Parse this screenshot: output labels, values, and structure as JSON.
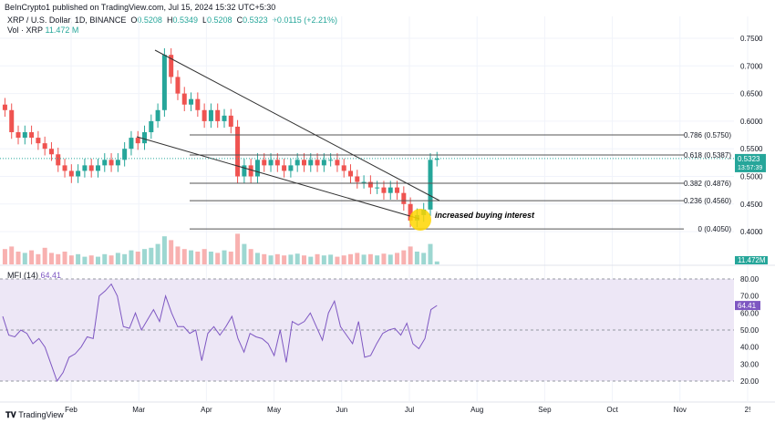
{
  "header": {
    "published": "BeInCrypto1 published on TradingView.com, Jul 15, 2024 15:32 UTC+5:30",
    "symbol": "XRP / U.S. Dollar, 1D, BINANCE",
    "o_label": "O",
    "o": "0.5208",
    "h_label": "H",
    "h": "0.5349",
    "l_label": "L",
    "l": "0.5208",
    "c_label": "C",
    "c": "0.5323",
    "change": "+0.0115 (+2.21%)",
    "vol_label": "Vol · XRP",
    "vol": "11.472 M"
  },
  "mfi": {
    "label": "MFI (14)",
    "value": "64.41"
  },
  "brand": "TradingView",
  "colors": {
    "up": "#26a69a",
    "down": "#ef5350",
    "mfi": "#7e57c2",
    "mfi_band": "#ede7f6",
    "highlight": "#ffd600"
  },
  "chart_data": [
    {
      "type": "candlestick",
      "title": "XRP / U.S. Dollar, 1D, BINANCE",
      "sampling_days": 3,
      "start": "2024-01-01",
      "close": [
        0.62,
        0.58,
        0.57,
        0.58,
        0.57,
        0.56,
        0.55,
        0.54,
        0.52,
        0.51,
        0.5,
        0.51,
        0.52,
        0.51,
        0.52,
        0.53,
        0.52,
        0.53,
        0.55,
        0.57,
        0.56,
        0.58,
        0.6,
        0.62,
        0.72,
        0.68,
        0.65,
        0.63,
        0.64,
        0.62,
        0.6,
        0.62,
        0.6,
        0.61,
        0.59,
        0.5,
        0.52,
        0.5,
        0.53,
        0.52,
        0.53,
        0.52,
        0.51,
        0.52,
        0.53,
        0.52,
        0.53,
        0.52,
        0.53,
        0.53,
        0.52,
        0.51,
        0.5,
        0.49,
        0.49,
        0.48,
        0.48,
        0.47,
        0.48,
        0.47,
        0.45,
        0.42,
        0.43,
        0.44,
        0.53,
        0.5323
      ],
      "volume_millions": [
        60,
        70,
        50,
        45,
        55,
        40,
        65,
        45,
        40,
        50,
        35,
        40,
        30,
        35,
        30,
        40,
        35,
        45,
        40,
        55,
        50,
        60,
        65,
        80,
        110,
        95,
        70,
        60,
        55,
        50,
        60,
        50,
        45,
        55,
        50,
        120,
        80,
        60,
        45,
        40,
        35,
        40,
        35,
        38,
        42,
        35,
        30,
        40,
        35,
        38,
        30,
        35,
        40,
        45,
        38,
        40,
        35,
        42,
        38,
        45,
        55,
        70,
        50,
        45,
        80,
        11.472
      ],
      "ylim": [
        0.37,
        0.76
      ],
      "yticks": [
        "0.7500",
        "0.7000",
        "0.6500",
        "0.6000",
        "0.5500",
        "0.5000",
        "0.4500",
        "0.4000"
      ],
      "last_price": "0.5323",
      "countdown": "13:57:39",
      "volume_label": "11.472M",
      "fib_levels": [
        {
          "label": "0.786 (0.5750)",
          "price": 0.575
        },
        {
          "label": "0.618 (0.5387)",
          "price": 0.5387
        },
        {
          "label": "0.382 (0.4876)",
          "price": 0.4876
        },
        {
          "label": "0.236 (0.4560)",
          "price": 0.456
        },
        {
          "label": "0 (0.4050)",
          "price": 0.405
        }
      ],
      "annotation": "increased buying interest"
    },
    {
      "type": "line",
      "title": "MFI (14)",
      "sampling_days": 3,
      "values": [
        58,
        47,
        46,
        50,
        48,
        42,
        45,
        40,
        30,
        20,
        25,
        34,
        36,
        40,
        46,
        45,
        70,
        73,
        77,
        70,
        52,
        51,
        60,
        50,
        56,
        62,
        55,
        70,
        60,
        52,
        52,
        48,
        50,
        32,
        48,
        52,
        47,
        52,
        58,
        45,
        37,
        48,
        46,
        45,
        42,
        35,
        50,
        31,
        55,
        53,
        55,
        60,
        52,
        44,
        60,
        67,
        52,
        47,
        42,
        55,
        34,
        35,
        42,
        48,
        50,
        51,
        47,
        54,
        42,
        39,
        45,
        62,
        64.41
      ],
      "ylim": [
        15,
        85
      ],
      "yticks": [
        "80.00",
        "70.00",
        "60.00",
        "50.00",
        "40.00",
        "30.00",
        "20.00"
      ],
      "bands": [
        20,
        50,
        80
      ]
    },
    {
      "type": "axis",
      "xticks": [
        "Feb",
        "Mar",
        "Apr",
        "May",
        "Jun",
        "Jul",
        "Aug",
        "Sep",
        "Oct",
        "Nov",
        "2!"
      ]
    }
  ]
}
